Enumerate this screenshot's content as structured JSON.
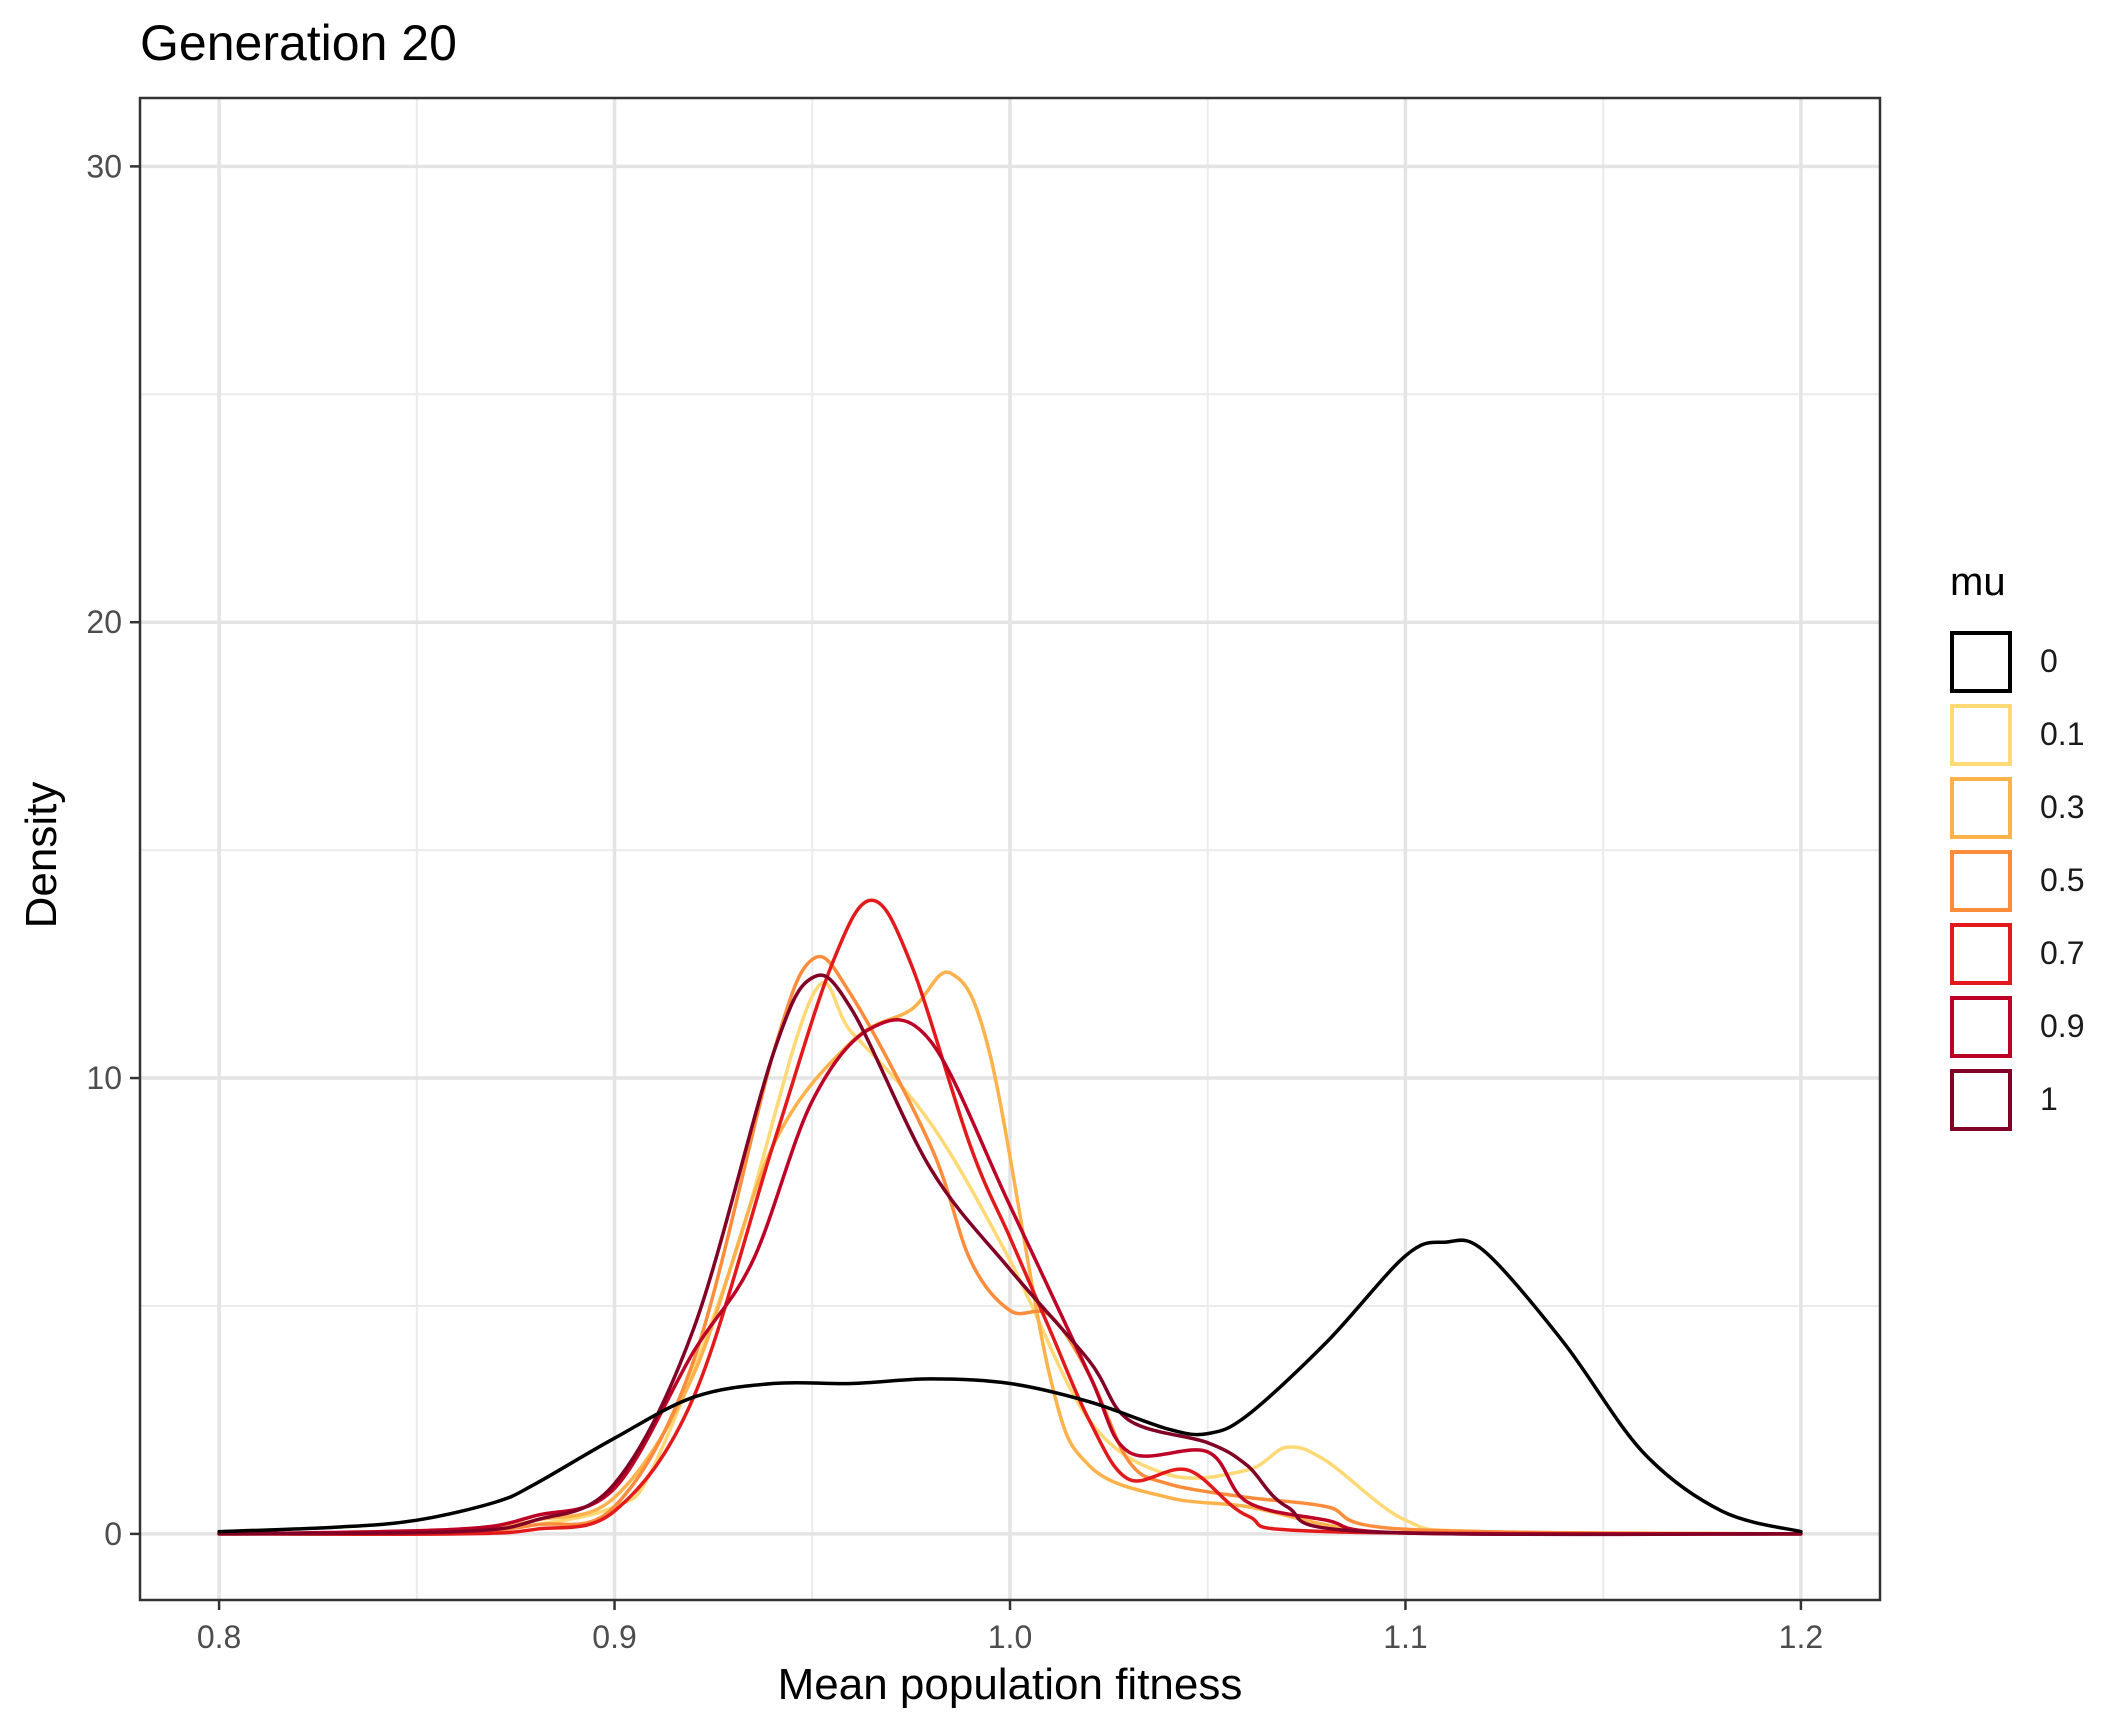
{
  "chart_data": {
    "type": "line",
    "title": "Generation 20",
    "xlabel": "Mean population fitness",
    "ylabel": "Density",
    "xlim": [
      0.78,
      1.22
    ],
    "ylim": [
      -1.45,
      31.5
    ],
    "x_ticks": [
      "0.8",
      "0.9",
      "1.0",
      "1.1",
      "1.2"
    ],
    "x_tick_values": [
      0.8,
      0.9,
      1.0,
      1.1,
      1.2
    ],
    "y_ticks": [
      "0",
      "10",
      "20",
      "30"
    ],
    "y_tick_values": [
      0,
      10,
      20,
      30
    ],
    "grid": true,
    "legend": {
      "title": "mu",
      "position": "right"
    },
    "series": [
      {
        "name": "0",
        "color": "#000000",
        "points": [
          [
            0.8,
            0.05
          ],
          [
            0.83,
            0.15
          ],
          [
            0.85,
            0.3
          ],
          [
            0.87,
            0.7
          ],
          [
            0.88,
            1.1
          ],
          [
            0.9,
            2.1
          ],
          [
            0.92,
            3.0
          ],
          [
            0.94,
            3.3
          ],
          [
            0.96,
            3.3
          ],
          [
            0.98,
            3.4
          ],
          [
            1.0,
            3.3
          ],
          [
            1.02,
            2.9
          ],
          [
            1.04,
            2.3
          ],
          [
            1.05,
            2.2
          ],
          [
            1.06,
            2.6
          ],
          [
            1.08,
            4.2
          ],
          [
            1.1,
            6.1
          ],
          [
            1.11,
            6.4
          ],
          [
            1.12,
            6.2
          ],
          [
            1.14,
            4.2
          ],
          [
            1.16,
            1.8
          ],
          [
            1.18,
            0.5
          ],
          [
            1.2,
            0.05
          ]
        ]
      },
      {
        "name": "0.1",
        "color": "#FED976",
        "points": [
          [
            0.8,
            0.0
          ],
          [
            0.86,
            0.05
          ],
          [
            0.88,
            0.2
          ],
          [
            0.9,
            0.6
          ],
          [
            0.91,
            1.5
          ],
          [
            0.93,
            6.0
          ],
          [
            0.95,
            11.8
          ],
          [
            0.96,
            11.0
          ],
          [
            0.98,
            9.0
          ],
          [
            1.0,
            6.0
          ],
          [
            1.02,
            2.5
          ],
          [
            1.04,
            1.3
          ],
          [
            1.06,
            1.4
          ],
          [
            1.07,
            1.9
          ],
          [
            1.08,
            1.6
          ],
          [
            1.1,
            0.3
          ],
          [
            1.12,
            0.05
          ],
          [
            1.2,
            0.0
          ]
        ]
      },
      {
        "name": "0.3",
        "color": "#FEB24C",
        "points": [
          [
            0.8,
            0.0
          ],
          [
            0.86,
            0.05
          ],
          [
            0.88,
            0.3
          ],
          [
            0.9,
            0.8
          ],
          [
            0.92,
            3.5
          ],
          [
            0.94,
            8.5
          ],
          [
            0.96,
            10.8
          ],
          [
            0.975,
            11.5
          ],
          [
            0.985,
            12.3
          ],
          [
            0.995,
            10.5
          ],
          [
            1.01,
            3.5
          ],
          [
            1.02,
            1.5
          ],
          [
            1.04,
            0.8
          ],
          [
            1.06,
            0.6
          ],
          [
            1.08,
            0.2
          ],
          [
            1.1,
            0.02
          ],
          [
            1.2,
            0.0
          ]
        ]
      },
      {
        "name": "0.5",
        "color": "#FD8D3C",
        "points": [
          [
            0.8,
            0.0
          ],
          [
            0.86,
            0.05
          ],
          [
            0.88,
            0.2
          ],
          [
            0.9,
            0.6
          ],
          [
            0.92,
            3.8
          ],
          [
            0.94,
            10.5
          ],
          [
            0.95,
            12.6
          ],
          [
            0.96,
            11.8
          ],
          [
            0.98,
            8.5
          ],
          [
            0.99,
            6.0
          ],
          [
            1.0,
            4.9
          ],
          [
            1.01,
            4.8
          ],
          [
            1.02,
            3.5
          ],
          [
            1.03,
            1.6
          ],
          [
            1.04,
            1.1
          ],
          [
            1.06,
            0.8
          ],
          [
            1.08,
            0.6
          ],
          [
            1.1,
            0.1
          ],
          [
            1.2,
            0.0
          ]
        ]
      },
      {
        "name": "0.7",
        "color": "#E31A1C",
        "points": [
          [
            0.8,
            0.0
          ],
          [
            0.86,
            0.0
          ],
          [
            0.88,
            0.1
          ],
          [
            0.9,
            0.5
          ],
          [
            0.92,
            3.0
          ],
          [
            0.94,
            8.5
          ],
          [
            0.955,
            12.5
          ],
          [
            0.965,
            13.9
          ],
          [
            0.975,
            12.5
          ],
          [
            0.99,
            8.5
          ],
          [
            1.0,
            6.5
          ],
          [
            1.01,
            4.5
          ],
          [
            1.02,
            2.5
          ],
          [
            1.03,
            1.2
          ],
          [
            1.045,
            1.4
          ],
          [
            1.06,
            0.4
          ],
          [
            1.08,
            0.05
          ],
          [
            1.2,
            0.0
          ]
        ]
      },
      {
        "name": "0.9",
        "color": "#BD0026",
        "points": [
          [
            0.8,
            0.0
          ],
          [
            0.86,
            0.1
          ],
          [
            0.88,
            0.4
          ],
          [
            0.9,
            1.0
          ],
          [
            0.92,
            4.0
          ],
          [
            0.935,
            6.0
          ],
          [
            0.95,
            9.5
          ],
          [
            0.965,
            11.1
          ],
          [
            0.98,
            10.8
          ],
          [
            1.0,
            7.2
          ],
          [
            1.02,
            3.5
          ],
          [
            1.03,
            1.8
          ],
          [
            1.05,
            1.8
          ],
          [
            1.06,
            0.7
          ],
          [
            1.08,
            0.3
          ],
          [
            1.1,
            0.02
          ],
          [
            1.2,
            0.0
          ]
        ]
      },
      {
        "name": "1",
        "color": "#800026",
        "points": [
          [
            0.8,
            0.0
          ],
          [
            0.86,
            0.05
          ],
          [
            0.88,
            0.3
          ],
          [
            0.9,
            1.1
          ],
          [
            0.92,
            4.5
          ],
          [
            0.94,
            10.5
          ],
          [
            0.95,
            12.2
          ],
          [
            0.96,
            11.5
          ],
          [
            0.98,
            8.0
          ],
          [
            1.0,
            5.8
          ],
          [
            1.02,
            3.8
          ],
          [
            1.03,
            2.5
          ],
          [
            1.05,
            2.0
          ],
          [
            1.06,
            1.5
          ],
          [
            1.07,
            0.6
          ],
          [
            1.09,
            0.05
          ],
          [
            1.2,
            0.0
          ]
        ]
      }
    ]
  }
}
